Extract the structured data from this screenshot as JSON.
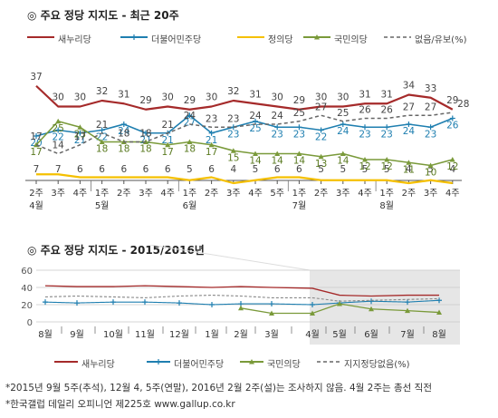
{
  "top": {
    "title": "◎ 주요 정당 지지도 - 최근 20주",
    "legend": [
      {
        "label": "새누리당",
        "color": "#a52a2a",
        "style": "solid"
      },
      {
        "label": "더불어민주당",
        "color": "#1f7fb0",
        "style": "solid-plus"
      },
      {
        "label": "정의당",
        "color": "#f5c000",
        "style": "solid"
      },
      {
        "label": "국민의당",
        "color": "#7a9a3a",
        "style": "solid-triangle"
      },
      {
        "label": "없음/유보(%)",
        "color": "#666666",
        "style": "dashed"
      }
    ]
  },
  "bottom": {
    "title": "◎ 주요 정당 지지도 - 2015/2016년",
    "legend": [
      {
        "label": "새누리당",
        "color": "#a52a2a",
        "style": "solid"
      },
      {
        "label": "더불어민주당",
        "color": "#1f7fb0",
        "style": "solid-plus"
      },
      {
        "label": "국민의당",
        "color": "#7a9a3a",
        "style": "solid-triangle"
      },
      {
        "label": "지지정당없음(%)",
        "color": "#666666",
        "style": "dashed"
      }
    ]
  },
  "footnotes": [
    "*2015년 9월 5주(추석), 12월 4, 5주(연말), 2016년 2월 2주(설)는 조사하지 않음. 4월 2주는 총선 직전",
    "*한국갤럽 데일리 오피니언 제225호 www.gallup.co.kr"
  ],
  "chart_data": [
    {
      "type": "line",
      "x": [
        "2주 4월",
        "3주",
        "4주",
        "1주 5월",
        "2주",
        "3주",
        "4주",
        "1주 6월",
        "2주",
        "3주",
        "4주",
        "5주",
        "1주 7월",
        "2주",
        "3주",
        "4주",
        "1주 8월",
        "2주",
        "3주",
        "4주"
      ],
      "series": [
        {
          "name": "새누리당",
          "values": [
            37,
            30,
            30,
            32,
            31,
            29,
            30,
            29,
            30,
            32,
            31,
            30,
            29,
            30,
            30,
            31,
            31,
            34,
            33,
            29
          ]
        },
        {
          "name": "더불어민주당",
          "values": [
            20,
            22,
            21,
            22,
            24,
            21,
            21,
            27,
            21,
            23,
            25,
            23,
            23,
            22,
            24,
            23,
            23,
            24,
            23,
            26
          ]
        },
        {
          "name": "정의당",
          "values": [
            7,
            7,
            6,
            6,
            6,
            6,
            6,
            5,
            6,
            4,
            5,
            6,
            6,
            5,
            5,
            5,
            5,
            4,
            5,
            4
          ]
        },
        {
          "name": "국민의당",
          "values": [
            17,
            25,
            23,
            18,
            18,
            18,
            17,
            18,
            17,
            15,
            14,
            14,
            14,
            13,
            14,
            12,
            12,
            11,
            10,
            12
          ]
        },
        {
          "name": "없음/유보(%)",
          "values": [
            17,
            14,
            17,
            21,
            18,
            18,
            21,
            24,
            23,
            23,
            24,
            24,
            25,
            27,
            25,
            26,
            26,
            27,
            27,
            28
          ]
        }
      ]
    },
    {
      "type": "line",
      "x": [
        "8월",
        "9월",
        "10월",
        "11월",
        "12월",
        "1월",
        "2월",
        "3월",
        "4월",
        "5월",
        "6월",
        "7월",
        "8월"
      ],
      "yticks": [
        "0",
        "20",
        "40",
        "60"
      ],
      "ylim": [
        0,
        60
      ],
      "series": [
        {
          "name": "새누리당",
          "values": [
            42,
            41,
            41,
            42,
            41,
            40,
            41,
            40,
            39,
            31,
            30,
            31,
            31
          ]
        },
        {
          "name": "더불어민주당",
          "values": [
            23,
            22,
            23,
            23,
            22,
            20,
            21,
            21,
            20,
            22,
            24,
            23,
            25
          ]
        },
        {
          "name": "국민의당",
          "values": [
            null,
            null,
            null,
            null,
            null,
            null,
            16,
            10,
            10,
            21,
            15,
            13,
            11
          ]
        },
        {
          "name": "지지정당없음(%)",
          "values": [
            29,
            30,
            29,
            28,
            30,
            31,
            30,
            28,
            28,
            24,
            25,
            26,
            27
          ]
        }
      ]
    }
  ]
}
